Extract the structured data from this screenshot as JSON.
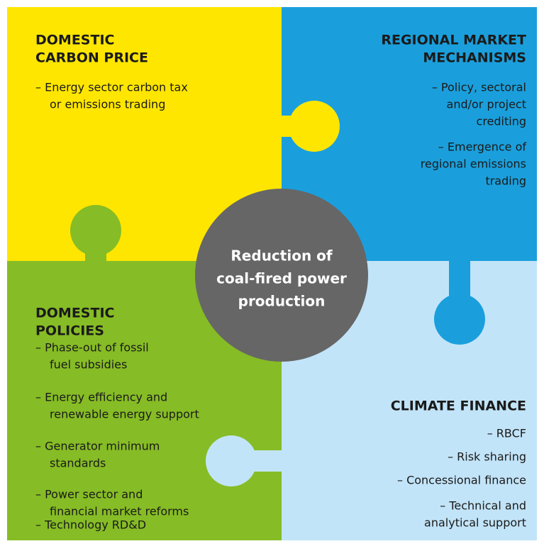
{
  "center": {
    "lines": [
      "Reduction of",
      "coal-fired power",
      "production"
    ]
  },
  "quadrants": [
    {
      "title": [
        "DOMESTIC",
        "CARBON PRICE"
      ],
      "items": [
        [
          "– Energy sector carbon tax",
          "or emissions trading"
        ]
      ]
    },
    {
      "title": [
        "REGIONAL MARKET",
        "MECHANISMS"
      ],
      "items": [
        [
          "– Policy, sectoral",
          "and/or project",
          "crediting"
        ],
        [
          "– Emergence of",
          "regional emissions",
          "trading"
        ]
      ]
    },
    {
      "title": [
        "DOMESTIC",
        "POLICIES"
      ],
      "items": [
        [
          "– Phase-out of fossil",
          "fuel subsidies"
        ],
        [
          "– Energy efficiency and",
          "renewable energy support"
        ],
        [
          "– Generator minimum",
          "standards"
        ],
        [
          "– Power sector and",
          "financial market reforms"
        ],
        [
          "– Technology RD&D"
        ]
      ]
    },
    {
      "title": [
        "CLIMATE FINANCE"
      ],
      "items": [
        [
          "– RBCF"
        ],
        [
          "– Risk sharing"
        ],
        [
          "– Concessional finance"
        ],
        [
          "– Technical and",
          "analytical support"
        ]
      ]
    }
  ]
}
